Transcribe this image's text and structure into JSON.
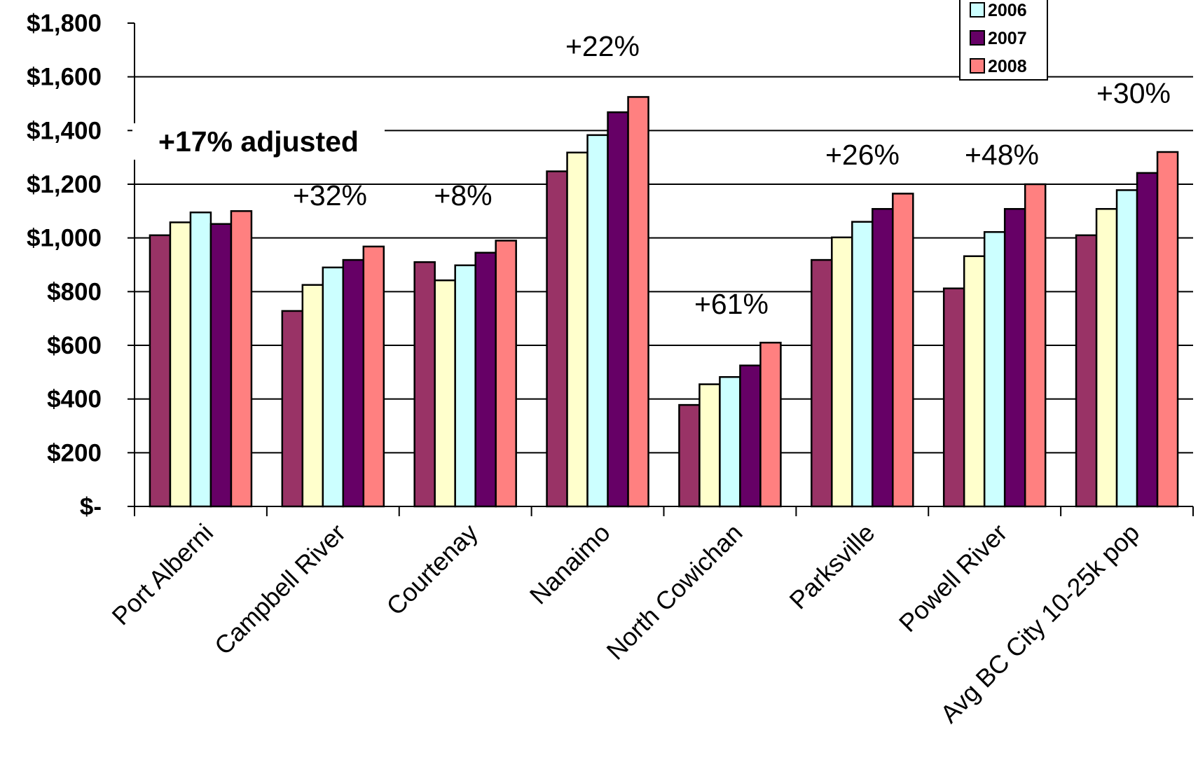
{
  "chart_data": {
    "type": "bar",
    "title": "",
    "xlabel": "",
    "ylabel": "",
    "ylim": [
      0,
      1800
    ],
    "grid": true,
    "legend_position": "top-right",
    "y_ticks": [
      "$-",
      "$200",
      "$400",
      "$600",
      "$800",
      "$1,000",
      "$1,200",
      "$1,400",
      "$1,600",
      "$1,800"
    ],
    "categories": [
      "Port Alberni",
      "Campbell River",
      "Courtenay",
      "Nanaimo",
      "North Cowichan",
      "Parksville",
      "Powell River",
      "Avg BC City 10-25k pop"
    ],
    "series": [
      {
        "values": [
          1010,
          728,
          910,
          1248,
          378,
          918,
          812,
          1010
        ],
        "color": "#993366"
      },
      {
        "values": [
          1058,
          825,
          842,
          1318,
          455,
          1002,
          932,
          1108
        ],
        "color": "#FFFFCC"
      },
      {
        "name": "2006",
        "values": [
          1095,
          890,
          898,
          1383,
          482,
          1060,
          1022,
          1178
        ],
        "color": "#CCFFFF"
      },
      {
        "name": "2007",
        "values": [
          1052,
          918,
          945,
          1468,
          525,
          1108,
          1108,
          1242
        ],
        "color": "#660066"
      },
      {
        "name": "2008",
        "values": [
          1100,
          968,
          990,
          1525,
          610,
          1165,
          1200,
          1320
        ],
        "color": "#FF8080"
      }
    ],
    "annotations": [
      {
        "text": "+17% adjusted",
        "category": "Port Alberni",
        "bold": true
      },
      {
        "text": "+32%",
        "category": "Campbell River"
      },
      {
        "text": "+8%",
        "category": "Courtenay"
      },
      {
        "text": "+22%",
        "category": "Nanaimo"
      },
      {
        "text": "+61%",
        "category": "North Cowichan"
      },
      {
        "text": "+26%",
        "category": "Parksville"
      },
      {
        "text": "+48%",
        "category": "Powell River"
      },
      {
        "text": "+30%",
        "category": "Avg BC City 10-25k pop"
      }
    ]
  }
}
